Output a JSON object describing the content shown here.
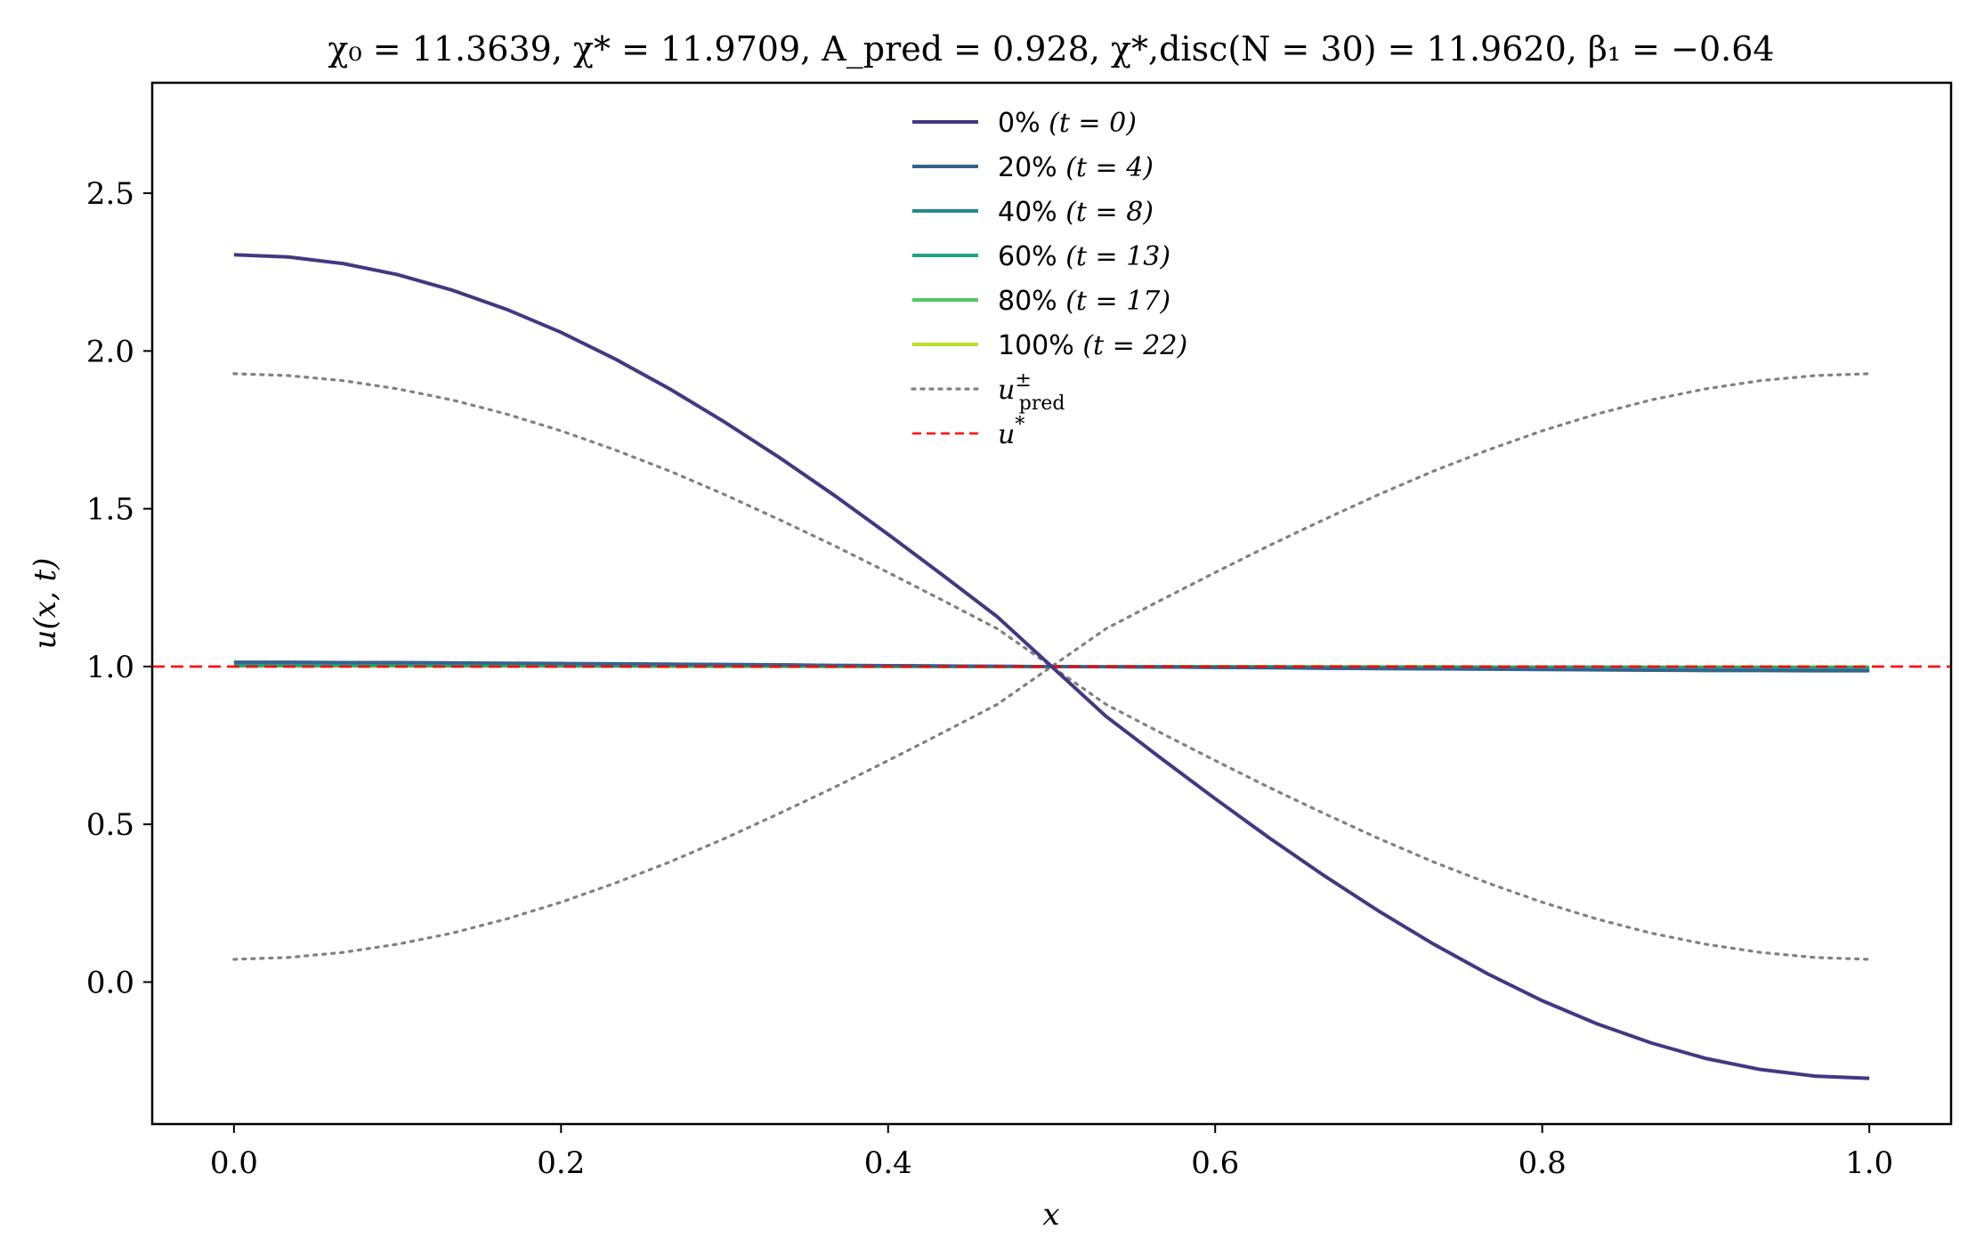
{
  "chart_data": {
    "type": "line",
    "title": "χ₀ = 11.3639,  χ* = 11.9709,  A_pred = 0.928,  χ*,disc(N = 30) = 11.9620,  β₁ = −0.64",
    "xlabel": "x",
    "ylabel": "u(x, t)",
    "xlim": [
      -0.05,
      1.05
    ],
    "ylim": [
      -0.45,
      2.85
    ],
    "xticks": [
      0.0,
      0.2,
      0.4,
      0.6,
      0.8,
      1.0
    ],
    "xtick_labels": [
      "0.0",
      "0.2",
      "0.4",
      "0.6",
      "0.8",
      "1.0"
    ],
    "yticks": [
      0.0,
      0.5,
      1.0,
      1.5,
      2.0,
      2.5
    ],
    "ytick_labels": [
      "0.0",
      "0.5",
      "1.0",
      "1.5",
      "2.0",
      "2.5"
    ],
    "grid": false,
    "legend_placement": "top-center",
    "x": [
      0.0,
      0.0333,
      0.0667,
      0.1,
      0.1333,
      0.1667,
      0.2,
      0.2333,
      0.2667,
      0.3,
      0.3333,
      0.3667,
      0.4,
      0.4333,
      0.4667,
      0.5,
      0.5333,
      0.5667,
      0.6,
      0.6333,
      0.6667,
      0.7,
      0.7333,
      0.7667,
      0.8,
      0.8333,
      0.8667,
      0.9,
      0.9333,
      0.9667,
      1.0
    ],
    "series": [
      {
        "name": "0% (t = 0)",
        "legend_pct": "0%",
        "legend_t": "(t = 0)",
        "color": "#453781",
        "style": "solid",
        "values": [
          2.305,
          2.298,
          2.277,
          2.242,
          2.193,
          2.132,
          2.059,
          1.974,
          1.879,
          1.775,
          1.663,
          1.544,
          1.419,
          1.29,
          1.158,
          1.0,
          0.842,
          0.71,
          0.581,
          0.456,
          0.337,
          0.225,
          0.121,
          0.026,
          -0.059,
          -0.132,
          -0.193,
          -0.242,
          -0.277,
          -0.298,
          -0.305
        ]
      },
      {
        "name": "20% (t = 4)",
        "legend_pct": "20%",
        "legend_t": "(t = 4)",
        "color": "#33638d",
        "style": "solid",
        "values": [
          1.014,
          1.014,
          1.013,
          1.013,
          1.012,
          1.011,
          1.01,
          1.009,
          1.008,
          1.007,
          1.006,
          1.004,
          1.003,
          1.002,
          1.001,
          1.0,
          0.999,
          0.998,
          0.997,
          0.996,
          0.994,
          0.993,
          0.992,
          0.991,
          0.99,
          0.989,
          0.988,
          0.987,
          0.987,
          0.986,
          0.986
        ]
      },
      {
        "name": "40% (t = 8)",
        "legend_pct": "40%",
        "legend_t": "(t = 8)",
        "color": "#238a8d",
        "style": "solid",
        "values": [
          1.012,
          1.012,
          1.012,
          1.011,
          1.011,
          1.01,
          1.009,
          1.008,
          1.007,
          1.006,
          1.005,
          1.004,
          1.003,
          1.002,
          1.001,
          1.0,
          0.999,
          0.998,
          0.997,
          0.996,
          0.995,
          0.994,
          0.993,
          0.992,
          0.991,
          0.99,
          0.989,
          0.989,
          0.988,
          0.988,
          0.988
        ]
      },
      {
        "name": "60% (t = 13)",
        "legend_pct": "60%",
        "legend_t": "(t = 13)",
        "color": "#20a386",
        "style": "solid",
        "values": [
          1.004,
          1.004,
          1.004,
          1.004,
          1.003,
          1.003,
          1.003,
          1.002,
          1.002,
          1.002,
          1.001,
          1.001,
          1.001,
          1.0,
          1.0,
          1.0,
          1.0,
          1.0,
          0.999,
          0.999,
          0.999,
          0.998,
          0.998,
          0.998,
          0.997,
          0.997,
          0.997,
          0.996,
          0.996,
          0.996,
          0.996
        ]
      },
      {
        "name": "80% (t = 17)",
        "legend_pct": "80%",
        "legend_t": "(t = 17)",
        "color": "#55c667",
        "style": "solid",
        "values": [
          1.002,
          1.002,
          1.002,
          1.002,
          1.002,
          1.002,
          1.001,
          1.001,
          1.001,
          1.001,
          1.001,
          1.0,
          1.0,
          1.0,
          1.0,
          1.0,
          1.0,
          1.0,
          1.0,
          1.0,
          0.999,
          0.999,
          0.999,
          0.999,
          0.999,
          0.999,
          0.998,
          0.998,
          0.998,
          0.998,
          0.998
        ]
      },
      {
        "name": "100% (t = 22)",
        "legend_pct": "100%",
        "legend_t": "(t = 22)",
        "color": "#b8de29",
        "style": "solid",
        "values": [
          1.001,
          1.001,
          1.001,
          1.001,
          1.001,
          1.001,
          1.001,
          1.001,
          1.0,
          1.0,
          1.0,
          1.0,
          1.0,
          1.0,
          1.0,
          1.0,
          1.0,
          1.0,
          1.0,
          1.0,
          1.0,
          1.0,
          1.0,
          0.999,
          0.999,
          0.999,
          0.999,
          0.999,
          0.999,
          0.999,
          0.999
        ]
      },
      {
        "name": "u±pred",
        "legend_base": "u",
        "legend_sup": "±",
        "legend_sub": "pred",
        "color": "#808080",
        "style": "dotted",
        "values": [
          1.928,
          1.922,
          1.906,
          1.88,
          1.845,
          1.8,
          1.747,
          1.686,
          1.619,
          1.545,
          1.466,
          1.384,
          1.298,
          1.21,
          1.12,
          1.0,
          0.88,
          0.79,
          0.702,
          0.616,
          0.534,
          0.455,
          0.381,
          0.314,
          0.253,
          0.2,
          0.155,
          0.12,
          0.094,
          0.078,
          0.072
        ],
        "mirror_values": [
          0.072,
          0.078,
          0.094,
          0.12,
          0.155,
          0.2,
          0.253,
          0.314,
          0.381,
          0.455,
          0.534,
          0.616,
          0.702,
          0.79,
          0.88,
          1.0,
          1.12,
          1.21,
          1.298,
          1.384,
          1.466,
          1.545,
          1.619,
          1.686,
          1.747,
          1.8,
          1.845,
          1.88,
          1.906,
          1.922,
          1.928
        ]
      }
    ],
    "reference_line": {
      "name": "u*",
      "legend_base": "u",
      "legend_sup": "*",
      "y": 1.0,
      "color": "#ff0000",
      "style": "dashed"
    }
  }
}
